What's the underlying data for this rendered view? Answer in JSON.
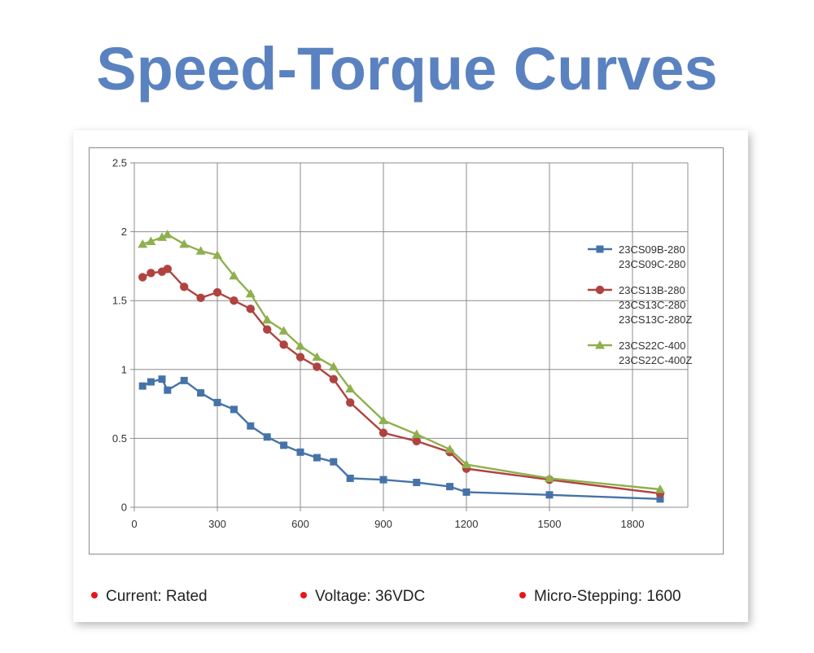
{
  "title": "Speed-Torque Curves",
  "footer": [
    {
      "label": "Current: Rated",
      "bullet_color": "#e8141b"
    },
    {
      "label": "Voltage: 36VDC",
      "bullet_color": "#e8141b"
    },
    {
      "label": "Micro-Stepping: 1600",
      "bullet_color": "#e8141b"
    }
  ],
  "chart_data": {
    "type": "line",
    "title": "",
    "xlabel": "",
    "ylabel": "",
    "xlim": [
      0,
      2000
    ],
    "ylim": [
      0,
      2.5
    ],
    "x_ticks": [
      "0",
      "300",
      "600",
      "900",
      "1200",
      "1500",
      "1800"
    ],
    "y_ticks": [
      "0",
      "0.5",
      "1",
      "1.5",
      "2",
      "2.5"
    ],
    "grid": true,
    "legend_position": "right",
    "series": [
      {
        "name_lines": [
          "23CS09B-280",
          "23CS09C-280"
        ],
        "color": "#4573a8",
        "marker": "square",
        "x": [
          30,
          60,
          100,
          120,
          180,
          240,
          300,
          360,
          420,
          480,
          540,
          600,
          660,
          720,
          780,
          900,
          1020,
          1140,
          1200,
          1500,
          1900
        ],
        "y": [
          0.88,
          0.91,
          0.93,
          0.85,
          0.92,
          0.83,
          0.76,
          0.71,
          0.59,
          0.51,
          0.45,
          0.4,
          0.36,
          0.33,
          0.21,
          0.2,
          0.18,
          0.15,
          0.11,
          0.09,
          0.06
        ]
      },
      {
        "name_lines": [
          "23CS13B-280",
          "23CS13C-280",
          "23CS13C-280Z"
        ],
        "color": "#b04340",
        "marker": "circle",
        "x": [
          30,
          60,
          100,
          120,
          180,
          240,
          300,
          360,
          420,
          480,
          540,
          600,
          660,
          720,
          780,
          900,
          1020,
          1140,
          1200,
          1500,
          1900
        ],
        "y": [
          1.67,
          1.7,
          1.71,
          1.73,
          1.6,
          1.52,
          1.56,
          1.5,
          1.44,
          1.29,
          1.18,
          1.09,
          1.02,
          0.93,
          0.76,
          0.54,
          0.48,
          0.4,
          0.28,
          0.2,
          0.1
        ]
      },
      {
        "name_lines": [
          "23CS22C-400",
          "23CS22C-400Z"
        ],
        "color": "#8fb04e",
        "marker": "triangle",
        "x": [
          30,
          60,
          100,
          120,
          180,
          240,
          300,
          360,
          420,
          480,
          540,
          600,
          660,
          720,
          780,
          900,
          1020,
          1140,
          1200,
          1500,
          1900
        ],
        "y": [
          1.91,
          1.93,
          1.96,
          1.98,
          1.91,
          1.86,
          1.83,
          1.68,
          1.55,
          1.36,
          1.28,
          1.17,
          1.09,
          1.02,
          0.86,
          0.63,
          0.53,
          0.42,
          0.31,
          0.21,
          0.13
        ]
      }
    ]
  }
}
